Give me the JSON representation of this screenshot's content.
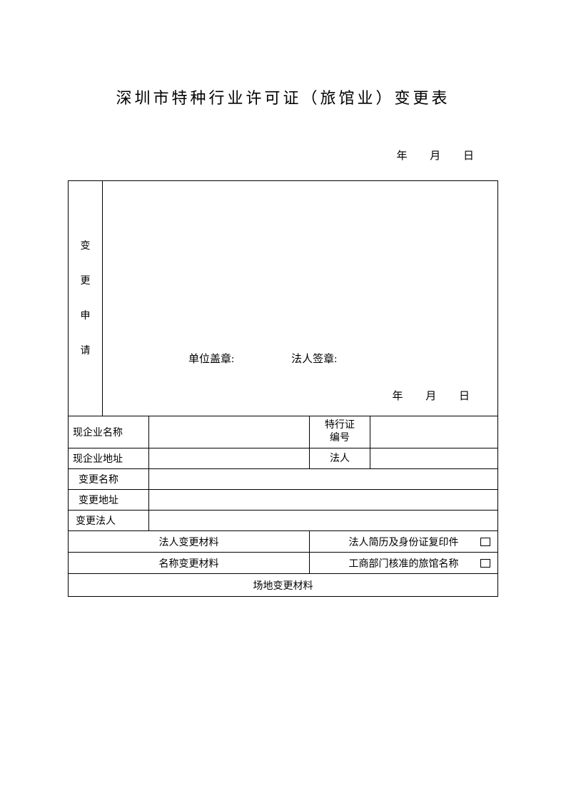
{
  "title": "深圳市特种行业许可证（旅馆业）变更表",
  "dateLabels": {
    "year": "年",
    "month": "月",
    "day": "日"
  },
  "application": {
    "sideLabel": [
      "变",
      "更",
      "申",
      "请"
    ],
    "unitStamp": "单位盖章:",
    "legalStamp": "法人签章:"
  },
  "rows": {
    "currentName": "现企业名称",
    "permitNo": "特行证编号",
    "currentAddr": "现企业地址",
    "legalPerson": "法人",
    "changeName": "变更名称",
    "changeAddr": "变更地址",
    "changeLegal": "变更法人"
  },
  "materials": {
    "legalChange": "法人变更材料",
    "legalChangeDoc": "法人简历及身份证复印件",
    "nameChange": "名称变更材料",
    "nameChangeDoc": "工商部门核准的旅馆名称",
    "venueChange": "场地变更材料"
  },
  "style": {
    "bgColor": "#ffffff",
    "textColor": "#000000",
    "borderColor": "#000000",
    "titleFontSize": 22,
    "bodyFontSize": 14
  }
}
